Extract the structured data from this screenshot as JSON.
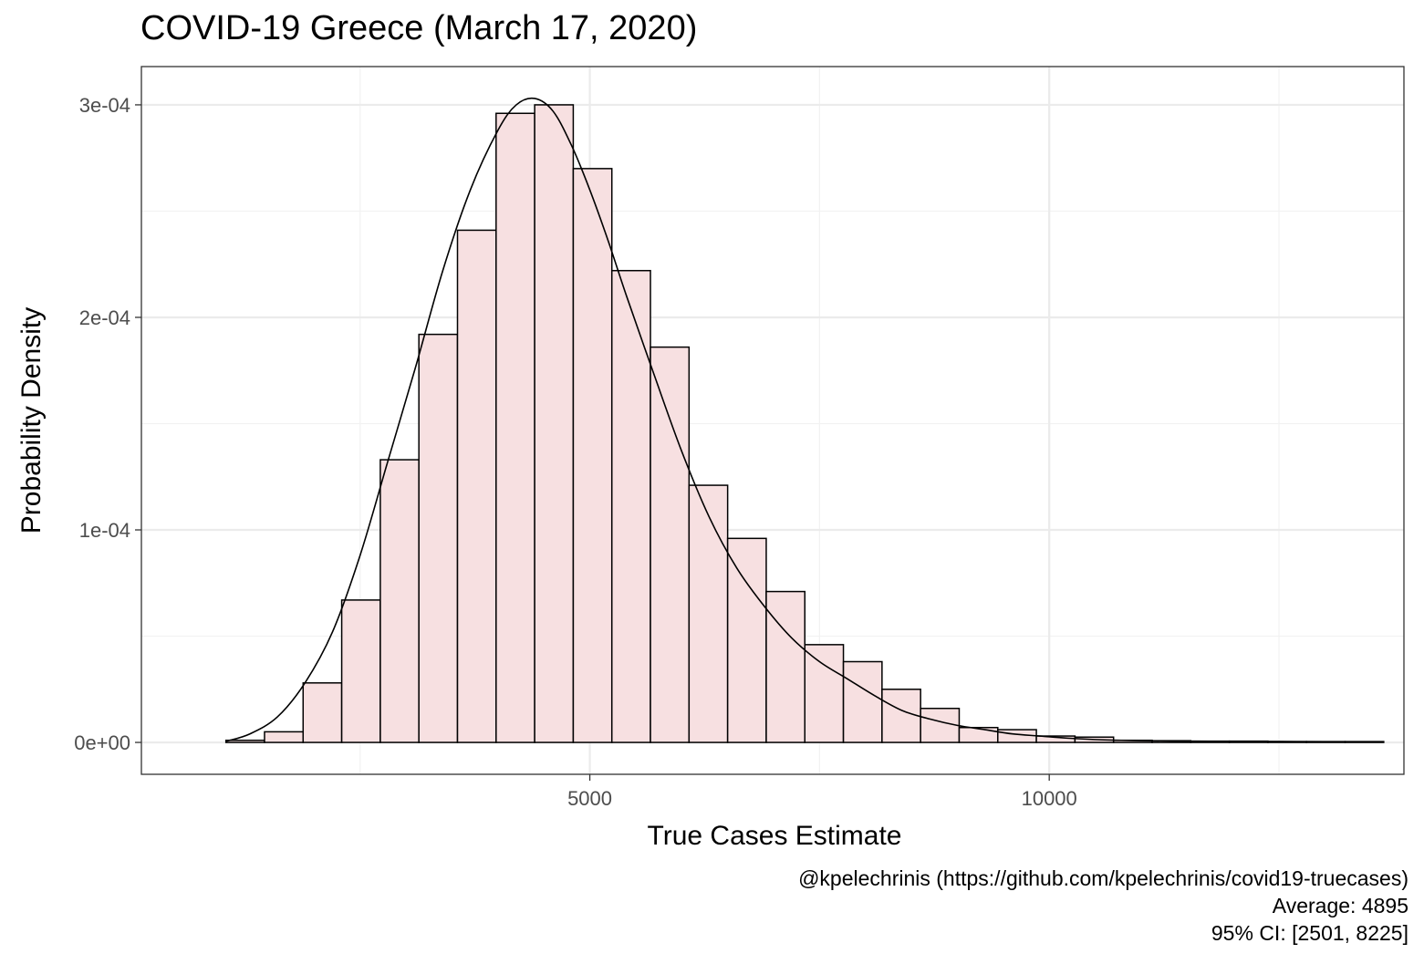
{
  "chart_data": {
    "type": "bar",
    "title": "COVID-19 Greece (March 17, 2020)",
    "xlabel": "True Cases Estimate",
    "ylabel": "Probability Density",
    "x_ticks": [
      5000,
      10000
    ],
    "x_tick_labels": [
      "5000",
      "10000"
    ],
    "y_ticks": [
      0,
      0.0001,
      0.0002,
      0.0003
    ],
    "y_tick_labels": [
      "0e+00",
      "1e-04",
      "2e-04",
      "3e-04"
    ],
    "xlim": [
      120,
      13860
    ],
    "ylim": [
      -1.5e-05,
      0.000318
    ],
    "grid": true,
    "histogram": {
      "bin_width": 420,
      "bin_starts": [
        1040,
        1460,
        1880,
        2300,
        2720,
        3140,
        3560,
        3980,
        4400,
        4820,
        5240,
        5660,
        6080,
        6500,
        6920,
        7340,
        7760,
        8180,
        8600,
        9020,
        9440,
        9860,
        10280,
        10700,
        11120,
        11540,
        11960,
        12380,
        12800,
        13220
      ],
      "density": [
        1e-06,
        5e-06,
        2.8e-05,
        6.7e-05,
        0.000133,
        0.000192,
        0.000241,
        0.000296,
        0.0003,
        0.00027,
        0.000222,
        0.000186,
        0.000121,
        9.6e-05,
        7.1e-05,
        4.6e-05,
        3.8e-05,
        2.5e-05,
        1.6e-05,
        7e-06,
        6e-06,
        3e-06,
        2.5e-06,
        1e-06,
        8e-07,
        6e-07,
        6e-07,
        4e-07,
        4e-07,
        4e-07
      ]
    },
    "density_curve": {
      "x": [
        1040,
        1300,
        1600,
        1900,
        2200,
        2500,
        2800,
        3100,
        3400,
        3700,
        4000,
        4200,
        4400,
        4600,
        4800,
        5000,
        5200,
        5400,
        5700,
        6000,
        6300,
        6600,
        6900,
        7200,
        7500,
        7800,
        8100,
        8400,
        8700,
        9000,
        9300,
        9600,
        9900,
        10200,
        10600,
        11000,
        11500,
        12000,
        12500,
        13000,
        13600
      ],
      "y": [
        5e-07,
        4e-06,
        1.2e-05,
        2.8e-05,
        5.2e-05,
        8.8e-05,
        0.000132,
        0.000176,
        0.000222,
        0.00026,
        0.000288,
        0.0003,
        0.000303,
        0.000297,
        0.000281,
        0.00026,
        0.000236,
        0.00021,
        0.000173,
        0.000137,
        0.000106,
        8.2e-05,
        6.4e-05,
        4.9e-05,
        3.8e-05,
        3e-05,
        2.2e-05,
        1.5e-05,
        1.1e-05,
        8e-06,
        6e-06,
        4e-06,
        3e-06,
        2e-06,
        1.2e-06,
        8e-07,
        6e-07,
        5e-07,
        4e-07,
        3e-07,
        2e-07
      ]
    },
    "bar_fill": "#f7e0e1",
    "bar_stroke": "#000000",
    "curve_color": "#000000",
    "panel_border": "#333333",
    "grid_major_color": "#ebebeb",
    "grid_minor_color": "#f2f2f2"
  },
  "caption": {
    "line1": "@kpelechrinis (https://github.com/kpelechrinis/covid19-truecases)",
    "line2": "Average: 4895",
    "line3": "95% CI: [2501, 8225]"
  }
}
